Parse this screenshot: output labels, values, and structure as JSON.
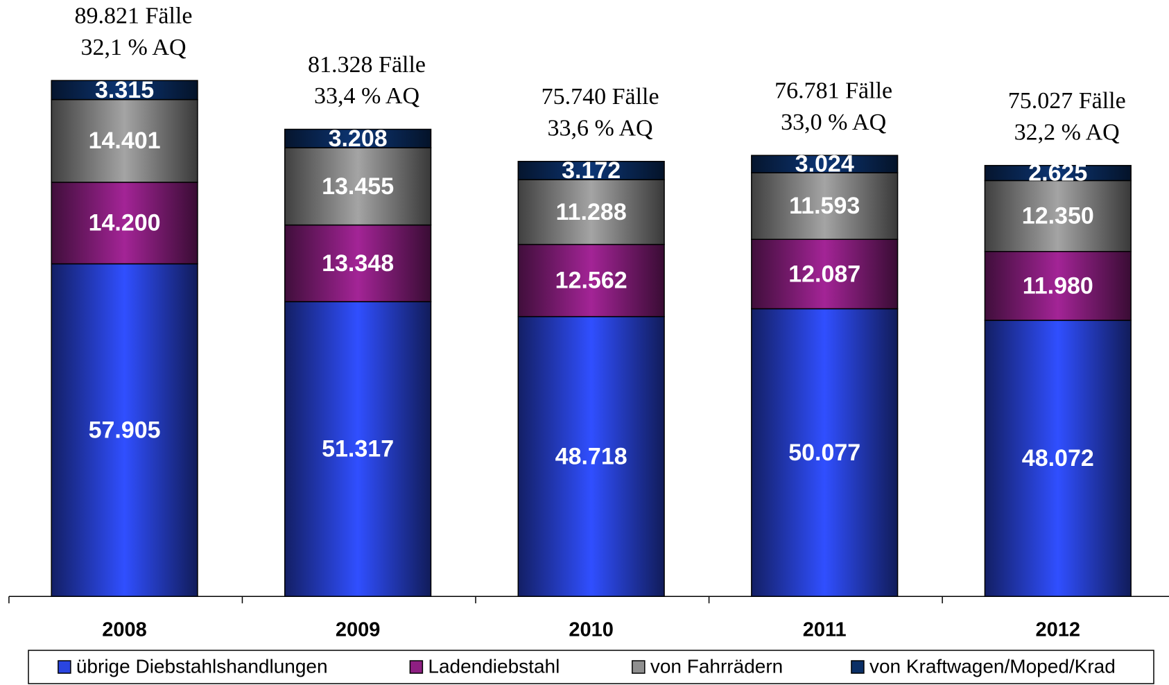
{
  "chart_data": {
    "type": "stacked_bar",
    "categories": [
      "2008",
      "2009",
      "2010",
      "2011",
      "2012"
    ],
    "series": [
      {
        "name": "übrige Diebstahlshandlungen",
        "color": "#2a45e0",
        "values": [
          57905,
          51317,
          48718,
          50077,
          48072
        ],
        "value_labels": [
          "57.905",
          "51.317",
          "48.718",
          "50.077",
          "48.072"
        ]
      },
      {
        "name": "Ladendiebstahl",
        "color": "#8e1f82",
        "values": [
          14200,
          13348,
          12562,
          12087,
          11980
        ],
        "value_labels": [
          "14.200",
          "13.348",
          "12.562",
          "12.087",
          "11.980"
        ]
      },
      {
        "name": "von Fahrrädern",
        "color": "#8f8f8f",
        "values": [
          14401,
          13455,
          11288,
          11593,
          12350
        ],
        "value_labels": [
          "14.401",
          "13.455",
          "11.288",
          "11.593",
          "12.350"
        ]
      },
      {
        "name": "von Kraftwagen/Moped/Krad",
        "color": "#0b2f66",
        "values": [
          3315,
          3208,
          3172,
          3024,
          2625
        ],
        "value_labels": [
          "3.315",
          "3.208",
          "3.172",
          "3.024",
          "2.625"
        ]
      }
    ],
    "annotations": [
      [
        "89.821 Fälle",
        "32,1 % AQ"
      ],
      [
        "81.328 Fälle",
        "33,4 % AQ"
      ],
      [
        "75.740 Fälle",
        "33,6 % AQ"
      ],
      [
        "76.781 Fälle",
        "33,0 % AQ"
      ],
      [
        "75.027 Fälle",
        "32,2 % AQ"
      ]
    ]
  }
}
